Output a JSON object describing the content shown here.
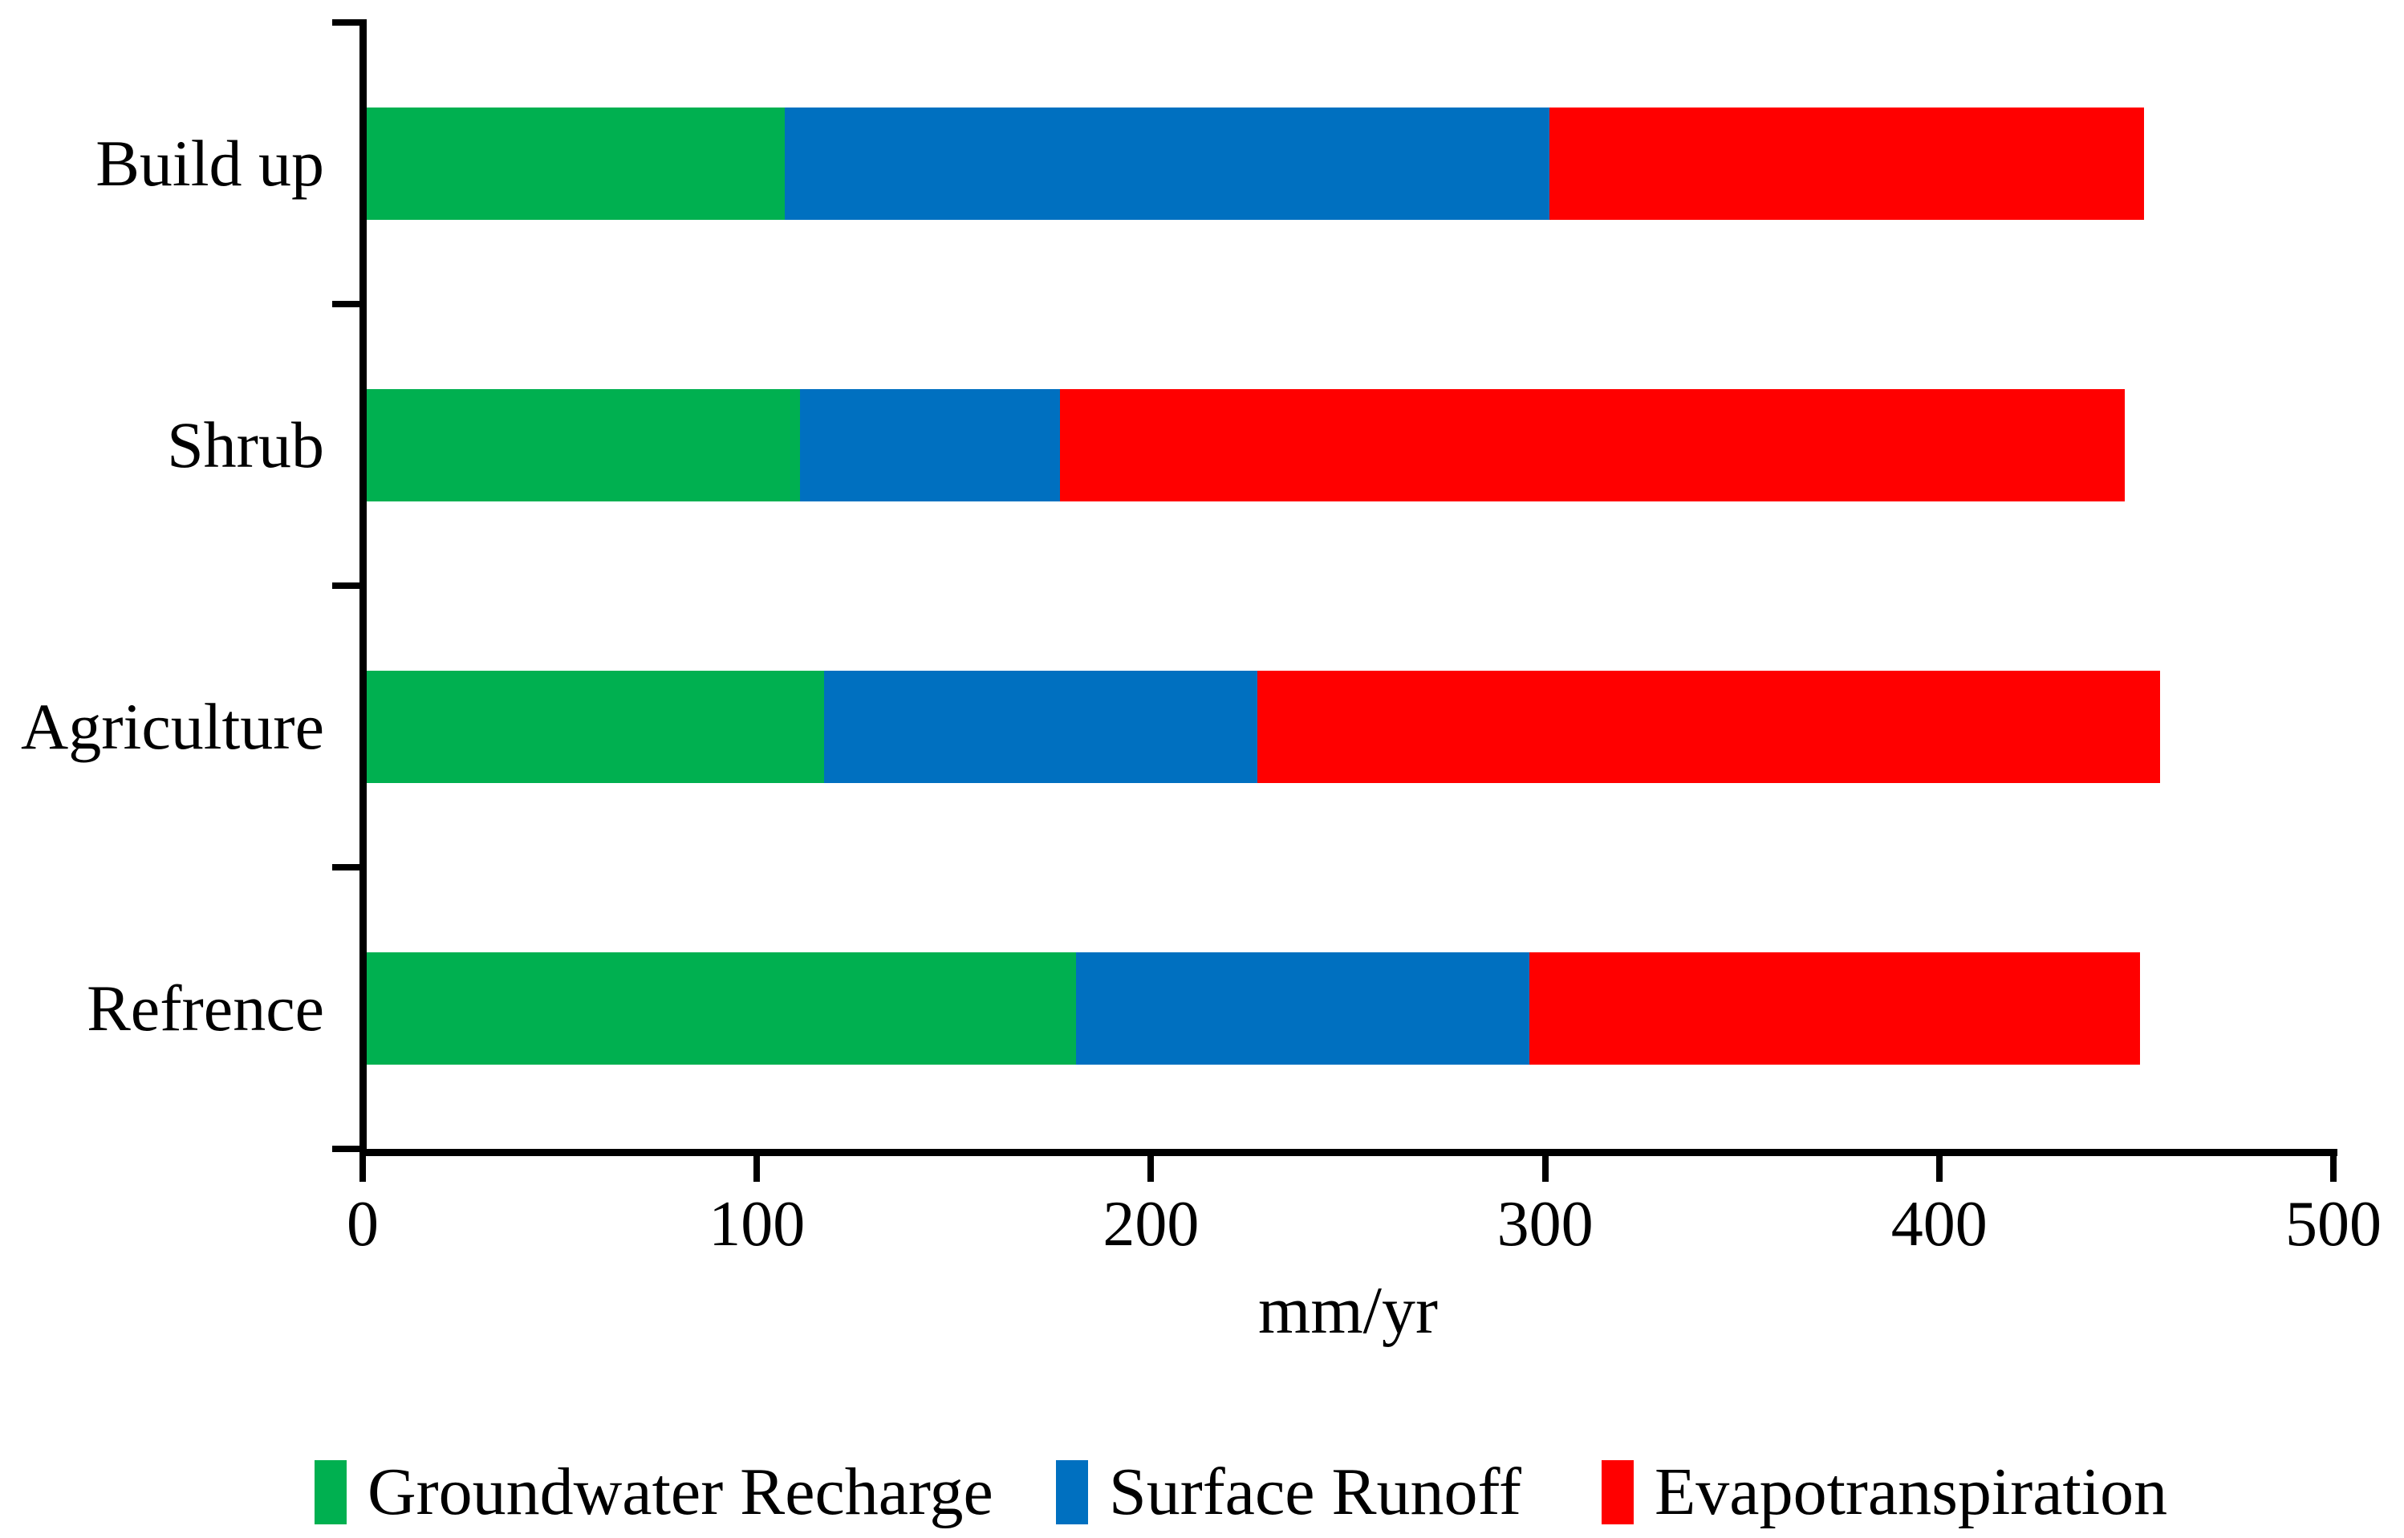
{
  "chart_data": {
    "type": "bar",
    "orientation": "horizontal",
    "stacked": true,
    "title": "",
    "xlabel": "mm/yr",
    "categories": [
      "Build up",
      "Shrub",
      "Agriculture",
      "Refrence"
    ],
    "series": [
      {
        "name": "Groundwater Recharge",
        "color": "#00B050",
        "values": [
          107,
          111,
          117,
          181
        ]
      },
      {
        "name": "Surface Runoff",
        "color": "#0070C0",
        "values": [
          194,
          66,
          110,
          115
        ]
      },
      {
        "name": "Evapotranspiration",
        "color": "#FF0000",
        "values": [
          151,
          270,
          229,
          155
        ]
      }
    ],
    "stacked_totals": [
      452,
      447,
      456,
      451
    ],
    "xlim": [
      0,
      500
    ],
    "x_ticks": [
      0,
      100,
      200,
      300,
      400,
      500
    ],
    "x_tick_labels": [
      "0",
      "100",
      "200",
      "300",
      "400",
      "500"
    ],
    "grid": false,
    "legend_position": "bottom",
    "axis_color": "#000000",
    "text_color": "#000000",
    "background_color": "#FFFFFF"
  }
}
